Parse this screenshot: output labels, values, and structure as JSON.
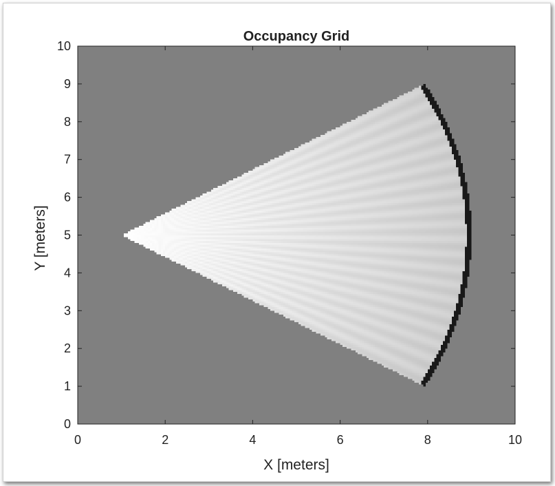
{
  "chart_data": {
    "type": "heatmap",
    "title": "Occupancy Grid",
    "xlabel": "X [meters]",
    "ylabel": "Y [meters]",
    "xlim": [
      0,
      10
    ],
    "ylim": [
      0,
      10
    ],
    "xticks": [
      "0",
      "2",
      "4",
      "6",
      "8",
      "10"
    ],
    "yticks": [
      "0",
      "1",
      "2",
      "3",
      "4",
      "5",
      "6",
      "7",
      "8",
      "9",
      "10"
    ],
    "grid": false,
    "colormap": "gray",
    "unknown_occupancy": 0.5,
    "sensor_pose": {
      "x": 1,
      "y": 5
    },
    "scan_field_of_view_deg": 60,
    "max_range_m": 8,
    "free_occupancy_near": 0.0,
    "free_occupancy_far": 0.2,
    "obstacle_arc": {
      "x_from": 7.9,
      "x_to": 9.0,
      "y_from": 1.0,
      "y_to": 9.0,
      "occupancy": 0.9
    },
    "colors": {
      "unknown": "#808080",
      "free": "#ffffff",
      "occupied": "#1a1a1a",
      "axes": "#222222"
    }
  }
}
